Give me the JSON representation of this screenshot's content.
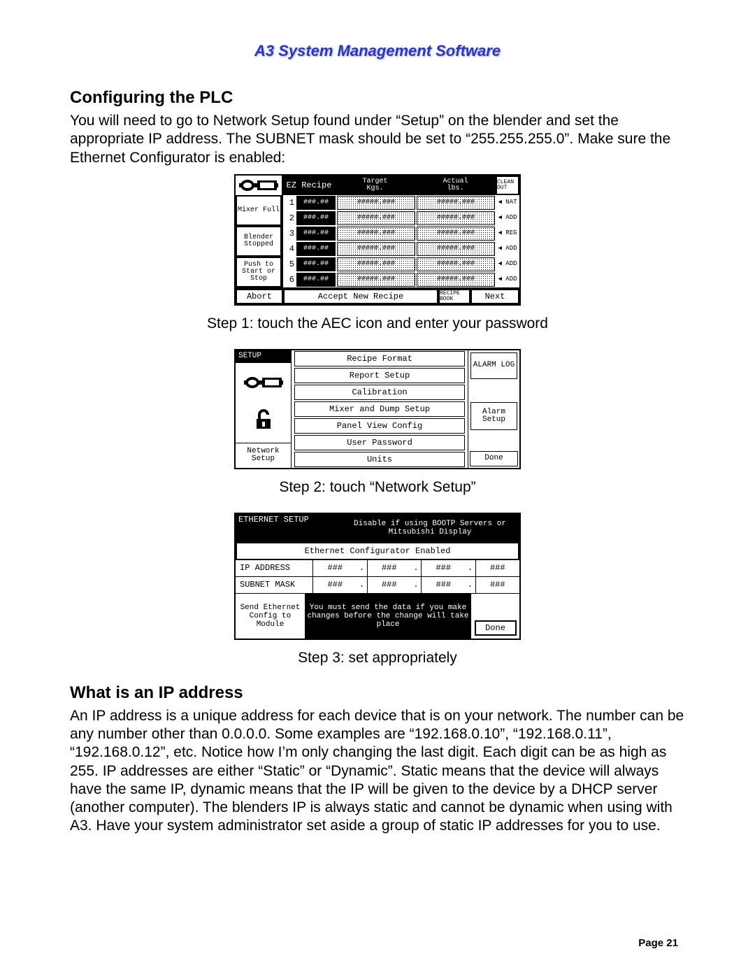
{
  "header": {
    "title": "A3 System Management Software"
  },
  "section1": {
    "heading": "Configuring the PLC",
    "paragraph": "You will need to go to Network Setup found under “Setup” on the blender and set the appropriate IP address.  The SUBNET mask should be set to “255.255.255.0”.  Make sure the Ethernet Configurator is enabled:"
  },
  "screen1": {
    "ez": "EZ Recipe",
    "target": "Target",
    "target_unit": "Kgs.",
    "actual": "Actual",
    "actual_unit": "lbs.",
    "clean": "CLEAN OUT",
    "left": {
      "mixer": "Mixer Full",
      "blender": "Blender Stopped",
      "push": "Push to Start or Stop"
    },
    "rows": [
      {
        "n": "1",
        "pct": "###.##",
        "t": "#####.###",
        "a": "#####.###",
        "tag": "◀ NAT"
      },
      {
        "n": "2",
        "pct": "###.##",
        "t": "#####.###",
        "a": "#####.###",
        "tag": "◀ ADD"
      },
      {
        "n": "3",
        "pct": "###.##",
        "t": "#####.###",
        "a": "#####.###",
        "tag": "◀ REG"
      },
      {
        "n": "4",
        "pct": "###.##",
        "t": "#####.###",
        "a": "#####.###",
        "tag": "◀ ADD"
      },
      {
        "n": "5",
        "pct": "###.##",
        "t": "#####.###",
        "a": "#####.###",
        "tag": "◀ ADD"
      },
      {
        "n": "6",
        "pct": "###.##",
        "t": "#####.###",
        "a": "#####.###",
        "tag": "◀ ADD"
      }
    ],
    "abort": "Abort",
    "accept": "Accept New Recipe",
    "book": "RECIPE BOOK",
    "next": "Next"
  },
  "step1": "Step 1: touch the AEC icon and enter your password",
  "screen2": {
    "setup": "SETUP",
    "network": "Network Setup",
    "menu": [
      "Recipe Format",
      "Report Setup",
      "Calibration",
      "Mixer and Dump Setup",
      "Panel View Config",
      "User Password",
      "Units"
    ],
    "alarmlog": "ALARM LOG",
    "alarmsetup": "Alarm Setup",
    "done": "Done"
  },
  "step2": "Step 2: touch “Network Setup”",
  "screen3": {
    "title": "ETHERNET SETUP",
    "warn": "Disable if using BOOTP Servers or Mitsubishi Display",
    "ecfg": "Ethernet Configurator Enabled",
    "ip_label": "IP ADDRESS",
    "mask_label": "SUBNET MASK",
    "oct": "###",
    "send": "Send Ethernet Config to Module",
    "note": "You must send the data if you make changes before the change will take place",
    "done": "Done"
  },
  "step3": "Step 3: set appropriately",
  "section2": {
    "heading": "What is an IP address",
    "paragraph": "An IP address is a unique address for each device that is on your network.  The number can be any number other than 0.0.0.0.  Some examples are “192.168.0.10”, “192.168.0.11”, “192.168.0.12”, etc.  Notice how I’m only changing the last digit.  Each digit can be as high as 255.  IP addresses are either “Static” or “Dynamic”.  Static means that the device will always have the same IP, dynamic means that the IP will be given to the device by a DHCP server (another computer).  The blenders IP is always static and cannot be dynamic when using with A3.  Have your system administrator set aside a group of static IP addresses for you to use."
  },
  "page": "Page 21"
}
